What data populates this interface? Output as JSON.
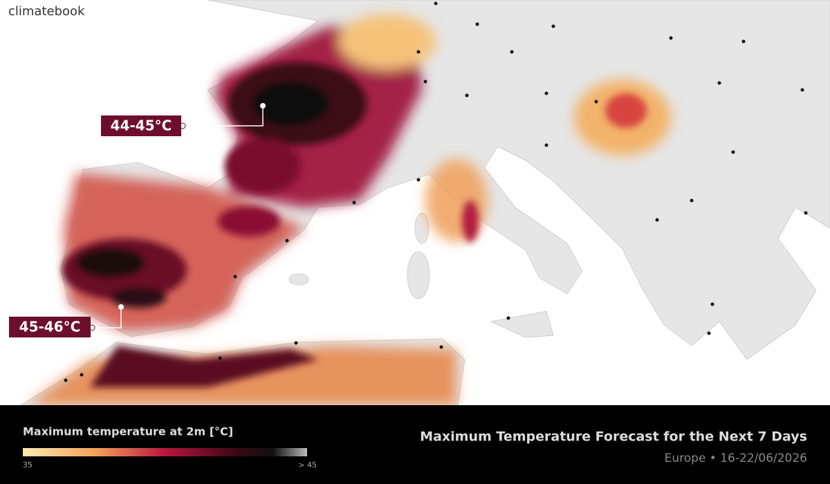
{
  "header": {
    "logo": "climatebook"
  },
  "annotations": [
    {
      "label": "44-45°C"
    },
    {
      "label": "45-46°C"
    }
  ],
  "legend": {
    "title": "Maximum temperature at 2m [°C]",
    "min_label": "35",
    "max_label": "> 45"
  },
  "footer": {
    "title": "Maximum Temperature Forecast for the Next 7 Days",
    "subtitle": "Europe • 16-22/06/2026"
  }
}
